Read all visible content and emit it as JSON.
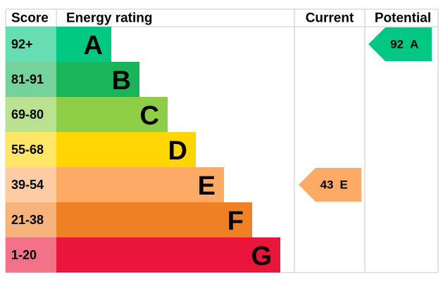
{
  "headers": {
    "score": "Score",
    "rating": "Energy rating",
    "current": "Current",
    "potential": "Potential"
  },
  "bands": [
    {
      "score": "92+",
      "letter": "A",
      "color": "#00c781"
    },
    {
      "score": "81-91",
      "letter": "B",
      "color": "#19b459"
    },
    {
      "score": "69-80",
      "letter": "C",
      "color": "#8dce46"
    },
    {
      "score": "55-68",
      "letter": "D",
      "color": "#ffd500"
    },
    {
      "score": "39-54",
      "letter": "E",
      "color": "#fcaa65"
    },
    {
      "score": "21-38",
      "letter": "F",
      "color": "#ef8023"
    },
    {
      "score": "1-20",
      "letter": "G",
      "color": "#e9153b"
    }
  ],
  "current": {
    "score": 43,
    "letter": "E"
  },
  "potential": {
    "score": 92,
    "letter": "A"
  }
}
